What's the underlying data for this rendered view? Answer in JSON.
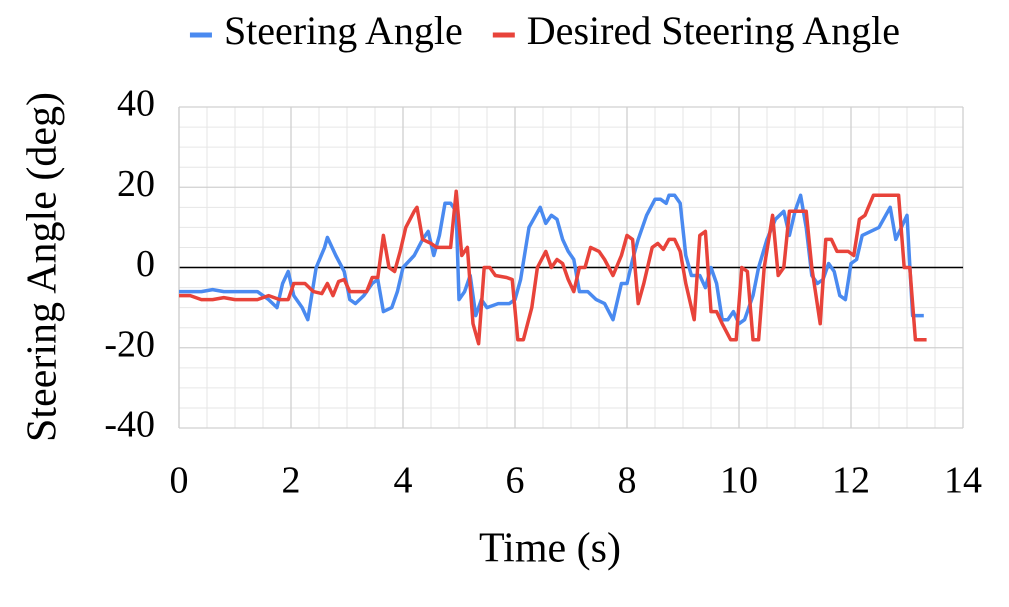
{
  "chart_data": {
    "type": "line",
    "xlabel": "Time (s)",
    "ylabel": "Steering Angle (deg)",
    "xlim": [
      0,
      14
    ],
    "xticks": [
      0,
      2,
      4,
      6,
      8,
      10,
      12,
      14
    ],
    "ylim": [
      -40,
      40
    ],
    "yticks": [
      -40,
      -20,
      0,
      20,
      40
    ],
    "grid": true,
    "minor_grid": true,
    "legend": "top",
    "series": [
      {
        "name": "Steering Angle",
        "color": "#4a8af0",
        "x": [
          0,
          0.2,
          0.4,
          0.6,
          0.8,
          1.0,
          1.2,
          1.4,
          1.6,
          1.75,
          1.85,
          1.95,
          2.05,
          2.2,
          2.3,
          2.45,
          2.6,
          2.65,
          2.8,
          2.95,
          3.05,
          3.15,
          3.3,
          3.45,
          3.55,
          3.65,
          3.8,
          3.9,
          4.0,
          4.2,
          4.35,
          4.45,
          4.55,
          4.65,
          4.75,
          4.85,
          4.95,
          5.0,
          5.1,
          5.2,
          5.3,
          5.4,
          5.5,
          5.7,
          5.9,
          6.0,
          6.1,
          6.25,
          6.45,
          6.55,
          6.65,
          6.75,
          6.85,
          6.95,
          7.05,
          7.15,
          7.3,
          7.45,
          7.6,
          7.75,
          7.9,
          8.0,
          8.1,
          8.2,
          8.35,
          8.5,
          8.6,
          8.7,
          8.75,
          8.85,
          8.95,
          9.05,
          9.15,
          9.3,
          9.4,
          9.5,
          9.6,
          9.7,
          9.8,
          9.9,
          10.0,
          10.1,
          10.25,
          10.35,
          10.5,
          10.65,
          10.8,
          10.9,
          11.0,
          11.1,
          11.2,
          11.3,
          11.4,
          11.5,
          11.6,
          11.7,
          11.8,
          11.9,
          12.0,
          12.1,
          12.2,
          12.35,
          12.5,
          12.7,
          12.8,
          12.9,
          13.0,
          13.1,
          13.2,
          13.3
        ],
        "values": [
          -6,
          -6,
          -6,
          -5.5,
          -6,
          -6,
          -6,
          -6,
          -8,
          -10,
          -4,
          -1,
          -7,
          -10,
          -13,
          0,
          5,
          7.5,
          3,
          -1,
          -8,
          -9,
          -7,
          -4,
          -3,
          -11,
          -10,
          -6,
          0,
          3,
          7,
          9,
          3,
          8,
          16,
          16,
          14,
          -8,
          -6,
          -2,
          -12,
          -8,
          -10,
          -9,
          -9,
          -8,
          -3,
          10,
          15,
          11,
          13,
          12,
          7,
          4,
          2,
          -6,
          -6,
          -8,
          -9,
          -13,
          -4,
          -4,
          2,
          7,
          13,
          17,
          17,
          16,
          18,
          18,
          16,
          3,
          -2,
          -2,
          -5,
          0,
          -4,
          -13,
          -13,
          -11,
          -14,
          -13,
          -7,
          0,
          7,
          12,
          14,
          8,
          14,
          18,
          10,
          -2,
          -4,
          -3,
          1,
          -1,
          -7,
          -8,
          1,
          2,
          8,
          9,
          10,
          15,
          7,
          10,
          13,
          -12,
          -12,
          -12
        ]
      },
      {
        "name": "Desired Steering Angle",
        "color": "#e8433a",
        "x": [
          0,
          0.2,
          0.4,
          0.6,
          0.8,
          1.0,
          1.2,
          1.4,
          1.6,
          1.8,
          1.95,
          2.05,
          2.25,
          2.4,
          2.55,
          2.65,
          2.75,
          2.85,
          2.95,
          3.05,
          3.2,
          3.35,
          3.45,
          3.55,
          3.65,
          3.75,
          3.85,
          3.95,
          4.05,
          4.2,
          4.25,
          4.35,
          4.5,
          4.6,
          4.75,
          4.85,
          4.95,
          5.05,
          5.15,
          5.25,
          5.35,
          5.45,
          5.55,
          5.65,
          5.85,
          5.95,
          6.05,
          6.15,
          6.3,
          6.4,
          6.55,
          6.65,
          6.75,
          6.85,
          6.95,
          7.05,
          7.15,
          7.25,
          7.35,
          7.5,
          7.6,
          7.75,
          7.9,
          8.0,
          8.1,
          8.2,
          8.3,
          8.45,
          8.55,
          8.65,
          8.75,
          8.85,
          8.95,
          9.05,
          9.2,
          9.3,
          9.4,
          9.5,
          9.6,
          9.7,
          9.85,
          9.95,
          10.05,
          10.15,
          10.25,
          10.35,
          10.45,
          10.6,
          10.7,
          10.8,
          10.9,
          11.1,
          11.2,
          11.3,
          11.45,
          11.55,
          11.65,
          11.75,
          11.95,
          12.05,
          12.15,
          12.25,
          12.4,
          12.6,
          12.7,
          12.85,
          12.95,
          13.05,
          13.15,
          13.25,
          13.35
        ],
        "values": [
          -7,
          -7,
          -8,
          -8,
          -7.5,
          -8,
          -8,
          -8,
          -7,
          -8,
          -8,
          -4,
          -4,
          -6,
          -6.5,
          -4,
          -7,
          -3.5,
          -3,
          -6,
          -6,
          -6,
          -2.5,
          -2.5,
          8,
          0,
          -1,
          4,
          10,
          14,
          15,
          7,
          6,
          5,
          5,
          5,
          19,
          3,
          5,
          -14,
          -19,
          0,
          0,
          -2,
          -2.5,
          -3,
          -18,
          -18,
          -10,
          0,
          4,
          0,
          2,
          1,
          -3,
          -6,
          0,
          0,
          5,
          4,
          2,
          -2,
          3,
          8,
          7,
          -9,
          -4,
          5,
          6,
          4.5,
          7,
          7,
          4,
          -4,
          -13,
          8,
          9,
          -11,
          -11,
          -14,
          -18,
          -18,
          0,
          -1,
          -18,
          -18,
          0,
          13,
          -2,
          0,
          14,
          14,
          14,
          0,
          -14,
          7,
          7,
          4,
          4,
          3,
          12,
          13,
          18,
          18,
          18,
          18,
          0,
          0,
          -18,
          -18,
          -18
        ]
      }
    ]
  }
}
